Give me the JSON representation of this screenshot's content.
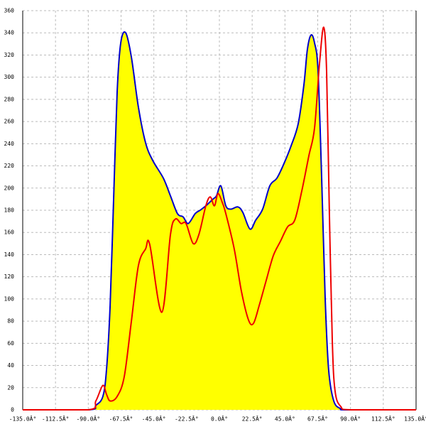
{
  "chart_data": {
    "type": "area",
    "xlim": [
      -135,
      135
    ],
    "ylim": [
      0,
      360
    ],
    "xticks": [
      {
        "value": -135,
        "label": "-135.0Â°"
      },
      {
        "value": -112.5,
        "label": "-112.5Â°"
      },
      {
        "value": -90,
        "label": "-90.0Â°"
      },
      {
        "value": -67.5,
        "label": "-67.5Â°"
      },
      {
        "value": -45,
        "label": "-45.0Â°"
      },
      {
        "value": -22.5,
        "label": "-22.5Â°"
      },
      {
        "value": 0,
        "label": "0.0Â°"
      },
      {
        "value": 22.5,
        "label": "22.5Â°"
      },
      {
        "value": 45,
        "label": "45.0Â°"
      },
      {
        "value": 67.5,
        "label": "67.5Â°"
      },
      {
        "value": 90,
        "label": "90.0Â°"
      },
      {
        "value": 112.5,
        "label": "112.5Â°"
      },
      {
        "value": 135,
        "label": "135.0Â°"
      }
    ],
    "yticks": [
      0,
      20,
      40,
      60,
      80,
      100,
      120,
      140,
      160,
      180,
      200,
      220,
      240,
      260,
      280,
      300,
      320,
      340,
      360
    ],
    "grid": true,
    "series": [
      {
        "color": "#0000cc",
        "fill": "#ffff00",
        "x": [
          -135,
          -90,
          -84.8,
          -80,
          -77.5,
          -75,
          -72.6,
          -70.2,
          -67.7,
          -64.3,
          -60.4,
          -55.6,
          -50.7,
          -45.8,
          -38.5,
          -33.6,
          -28.8,
          -24.9,
          -21.4,
          -16.6,
          -13.2,
          -9.3,
          -4.4,
          -2,
          1,
          4.4,
          7.8,
          12.7,
          16.1,
          21,
          24.9,
          29.7,
          34.6,
          39.5,
          44.3,
          49.2,
          54.1,
          58,
          60.4,
          62.9,
          65.3,
          67.7,
          70.2,
          72.6,
          75,
          78.5,
          83.3,
          88.2,
          135
        ],
        "values": [
          0,
          0,
          4,
          12,
          36,
          94,
          190,
          286,
          331,
          340,
          318,
          273,
          241,
          225,
          209,
          193,
          177,
          174,
          168,
          177,
          180,
          184,
          190,
          193,
          202,
          184,
          181,
          183,
          178,
          163,
          171,
          181,
          202,
          209,
          222,
          238,
          258,
          293,
          325,
          338,
          331,
          306,
          209,
          101,
          36,
          8,
          1,
          0,
          0
        ]
      },
      {
        "color": "#ee0000",
        "x": [
          -135,
          -90,
          -84.8,
          -80,
          -77.5,
          -75,
          -70.2,
          -65.3,
          -60.4,
          -55.6,
          -50.7,
          -47.8,
          -39.5,
          -33.6,
          -30.2,
          -26.3,
          -22.9,
          -18,
          -14.1,
          -9.3,
          -6.3,
          -3.4,
          -1,
          2,
          4.4,
          10.2,
          15.1,
          20,
          23.4,
          27.3,
          32.2,
          37,
          41.9,
          46.8,
          51.7,
          56.5,
          61.4,
          65.3,
          68.7,
          71.6,
          73.6,
          75.5,
          77.5,
          79.4,
          83.3,
          90.6,
          135
        ],
        "values": [
          0,
          0,
          8,
          22,
          14,
          8,
          12,
          30,
          80,
          130,
          145,
          149,
          88,
          158,
          172,
          168,
          168,
          150,
          158,
          184,
          192,
          184,
          195,
          187,
          177,
          145,
          107,
          81,
          78,
          94,
          117,
          139,
          152,
          165,
          171,
          197,
          229,
          254,
          312,
          345,
          305,
          177,
          62,
          17,
          3,
          0,
          0
        ]
      }
    ]
  }
}
